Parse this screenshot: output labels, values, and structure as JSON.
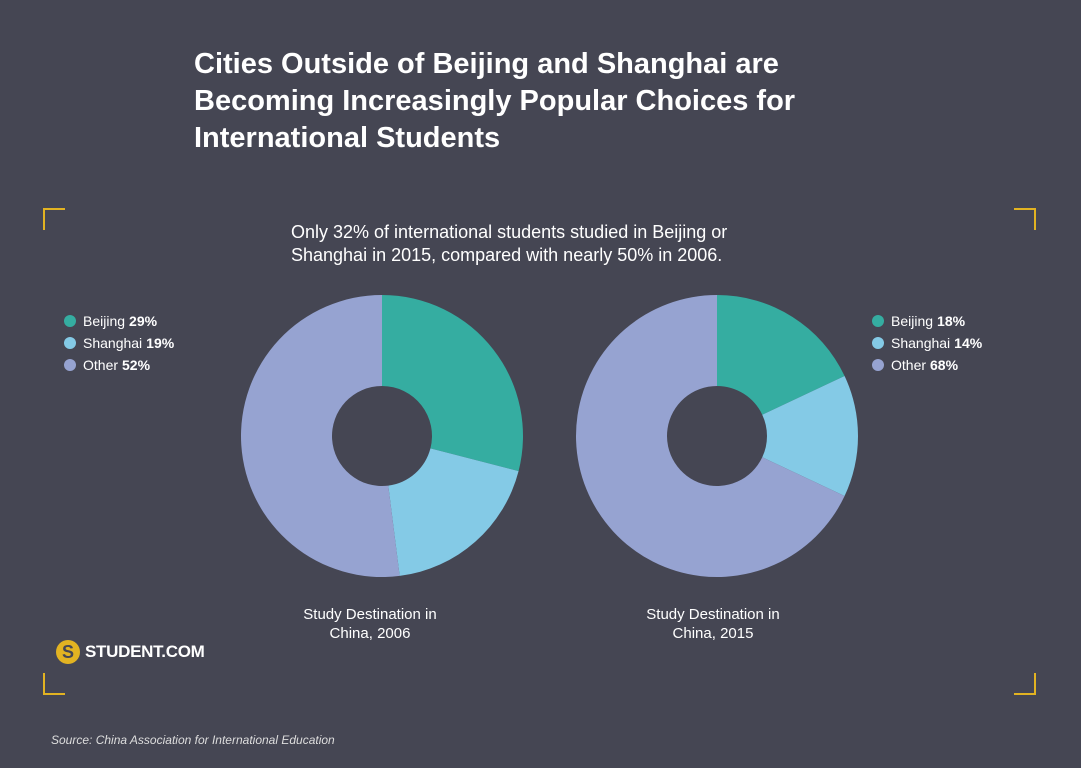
{
  "title_lines": [
    "Cities Outside of Beijing and Shanghai are",
    "Becoming Increasingly Popular Choices for",
    "International Students"
  ],
  "subtitle_lines": [
    "Only 32% of international students studied in Beijing or",
    "Shanghai in 2015, compared with nearly 50% in 2006."
  ],
  "logo": {
    "mark": "S",
    "text": "STUDENT.COM"
  },
  "source": "Source: China Association for International Education",
  "colors": {
    "background": "#454653",
    "beijing": "#35ada1",
    "shanghai": "#84cae6",
    "other": "#96a3d1",
    "corner": "#e2b322"
  },
  "chart_data": [
    {
      "type": "pie",
      "hole": true,
      "caption_lines": [
        "Study Destination in",
        "China, 2006"
      ],
      "categories": [
        "Beijing",
        "Shanghai",
        "Other"
      ],
      "labels": [
        "29%",
        "19%",
        "52%"
      ],
      "values": [
        29,
        19,
        52
      ],
      "legend_position": "left"
    },
    {
      "type": "pie",
      "hole": true,
      "caption_lines": [
        "Study Destination in",
        "China, 2015"
      ],
      "categories": [
        "Beijing",
        "Shanghai",
        "Other"
      ],
      "labels": [
        "18%",
        "14%",
        "68%"
      ],
      "values": [
        18,
        14,
        68
      ],
      "legend_position": "right"
    }
  ]
}
